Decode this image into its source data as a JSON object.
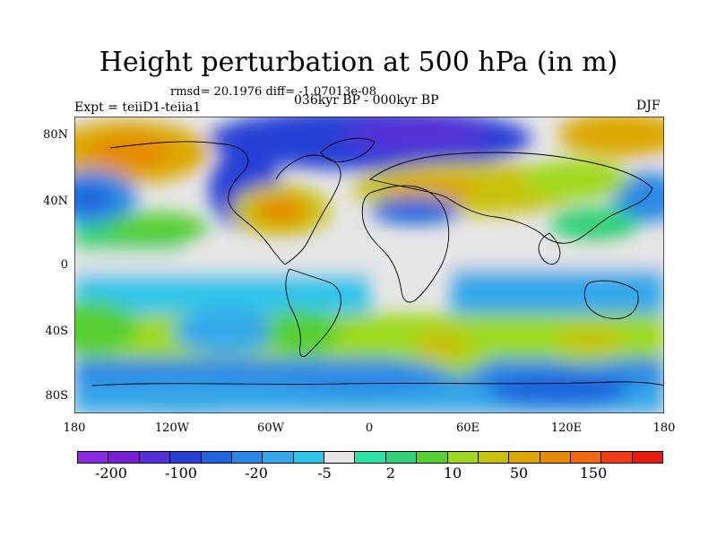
{
  "title": "Height perturbation at 500 hPa (in m)",
  "stats": "rmsd= 20.1976 diff= -1.07013e-08",
  "expt": "Expt = teiiD1-teiia1",
  "period": "036kyr BP - 000kyr BP",
  "season": "DJF",
  "lat_labels": [
    "80N",
    "40N",
    "0",
    "40S",
    "80S"
  ],
  "lon_labels": [
    "180",
    "120W",
    "60W",
    "0",
    "60E",
    "120E",
    "180"
  ],
  "colorbar": {
    "labels": [
      "-200",
      "-100",
      "-20",
      "-5",
      "2",
      "10",
      "50",
      "150"
    ],
    "colors": [
      "#8a2be2",
      "#7a1fd6",
      "#5530d8",
      "#2740d6",
      "#1f63dd",
      "#2c88e6",
      "#35a8ea",
      "#2ec4ea",
      "#e6e6e6",
      "#2fe0a8",
      "#30d17a",
      "#55cf32",
      "#9ed91f",
      "#c8c20c",
      "#dca800",
      "#e68a00",
      "#f06a14",
      "#f03a1a",
      "#e81e0c"
    ]
  },
  "map_colors": {
    "land_outline": "#000000",
    "neutral": "#e6e6e6"
  }
}
